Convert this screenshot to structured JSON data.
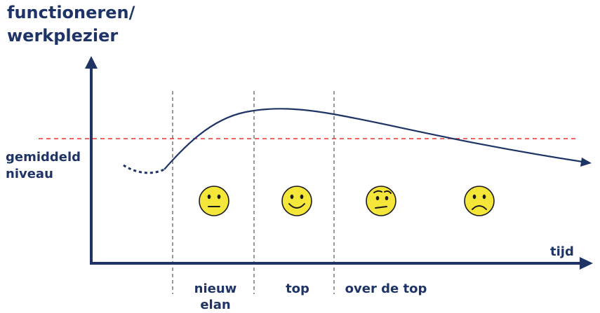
{
  "diagram": {
    "y_axis_label_line1": "functioneren/",
    "y_axis_label_line2": "werkplezier",
    "reference_label_line1": "gemiddeld",
    "reference_label_line2": "niveau",
    "x_axis_label": "tijd",
    "phases": [
      {
        "label_line1": "nieuw",
        "label_line2": "elan",
        "face": "neutral-face-icon"
      },
      {
        "label_line1": "top",
        "face": "smiling-face-icon"
      },
      {
        "label_line1": "over de top",
        "face": "skeptical-face-icon"
      },
      {
        "label_line1": "",
        "face": "frowning-face-icon"
      }
    ],
    "colors": {
      "axis": "#1f3466",
      "curve": "#1f3466",
      "reference_line": "#e8352b",
      "divider": "#555555",
      "face_fill": "#f5e63a",
      "face_stroke": "#1a1a1a"
    }
  }
}
